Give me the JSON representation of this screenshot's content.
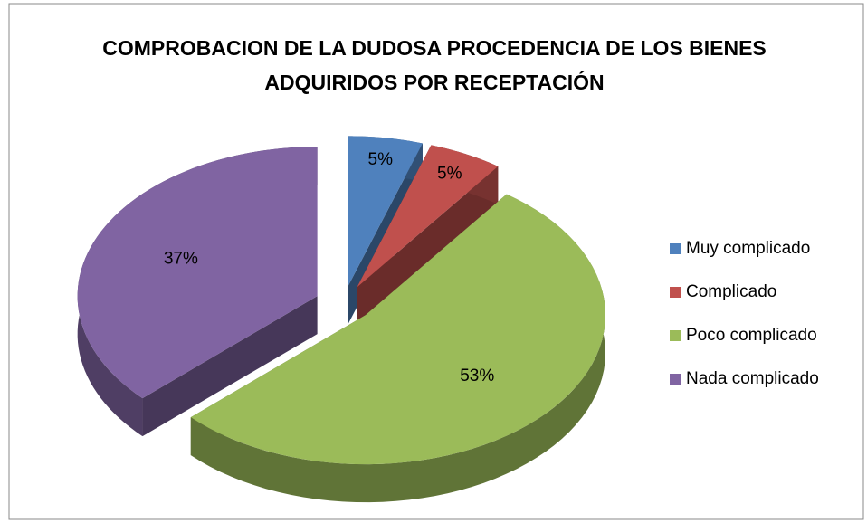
{
  "chart_data": {
    "type": "pie",
    "title": "COMPROBACION DE LA DUDOSA PROCEDENCIA DE LOS BIENES ADQUIRIDOS POR RECEPTACIÓN",
    "categories": [
      "Muy complicado",
      "Complicado",
      "Poco complicado",
      "Nada complicado"
    ],
    "values": [
      5,
      5,
      53,
      37
    ],
    "value_labels": [
      "5%",
      "5%",
      "53%",
      "37%"
    ],
    "colors": [
      "#4f81bd",
      "#c0504d",
      "#9bbb59",
      "#8064a2"
    ],
    "legend": "right"
  }
}
